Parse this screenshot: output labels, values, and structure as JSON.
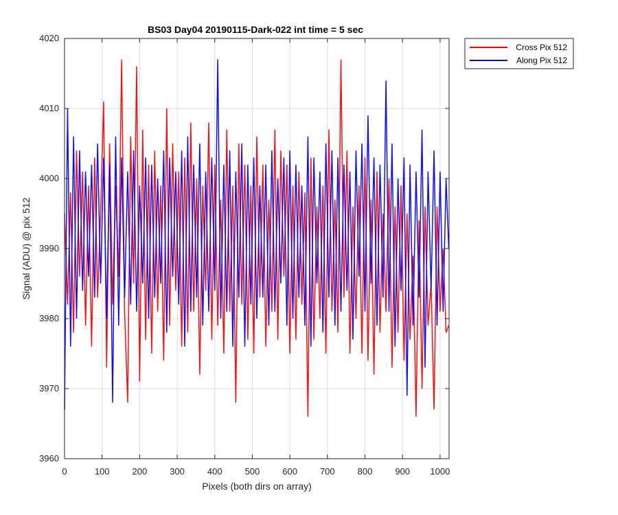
{
  "chart_data": {
    "type": "line",
    "title": "BS03 Day04 20190115-Dark-022 int time = 5 sec",
    "xlabel": "Pixels (both dirs on array)",
    "ylabel": "Signal (ADU) @ pix 512",
    "xlim": [
      0,
      1024
    ],
    "ylim": [
      3960,
      4020
    ],
    "xticks": [
      0,
      100,
      200,
      300,
      400,
      500,
      600,
      700,
      800,
      900,
      1000
    ],
    "yticks": [
      3960,
      3970,
      3980,
      3990,
      4000,
      4010,
      4020
    ],
    "grid": true,
    "legend_position": "outside-top-right",
    "sample_step": 8,
    "series": [
      {
        "name": "Cross Pix 512",
        "color": "#ff0000",
        "x": [
          0,
          8,
          16,
          24,
          32,
          40,
          48,
          56,
          64,
          72,
          80,
          88,
          96,
          104,
          112,
          120,
          128,
          136,
          144,
          152,
          160,
          168,
          176,
          184,
          192,
          200,
          208,
          216,
          224,
          232,
          240,
          248,
          256,
          264,
          272,
          280,
          288,
          296,
          304,
          312,
          320,
          328,
          336,
          344,
          352,
          360,
          368,
          376,
          384,
          392,
          400,
          408,
          416,
          424,
          432,
          440,
          448,
          456,
          464,
          472,
          480,
          488,
          496,
          504,
          512,
          520,
          528,
          536,
          544,
          552,
          560,
          568,
          576,
          584,
          592,
          600,
          608,
          616,
          624,
          632,
          640,
          648,
          656,
          664,
          672,
          680,
          688,
          696,
          704,
          712,
          720,
          728,
          736,
          744,
          752,
          760,
          768,
          776,
          784,
          792,
          800,
          808,
          816,
          824,
          832,
          840,
          848,
          856,
          864,
          872,
          880,
          888,
          896,
          904,
          912,
          920,
          928,
          936,
          944,
          952,
          960,
          968,
          976,
          984,
          992,
          1000,
          1008,
          1016,
          1023
        ],
        "values": [
          3995,
          3982,
          3998,
          3978,
          4004,
          3986,
          4001,
          3979,
          3999,
          3976,
          4003,
          3983,
          3995,
          4011,
          3973,
          4005,
          3982,
          3999,
          3986,
          4017,
          3981,
          3968,
          4006,
          3985,
          4016,
          3971,
          4007,
          3977,
          4002,
          3975,
          4004,
          3981,
          3999,
          3974,
          4010,
          3979,
          4005,
          3984,
          4001,
          3976,
          4003,
          3978,
          4008,
          3981,
          4000,
          3972,
          3999,
          3984,
          4008,
          3977,
          4002,
          3979,
          3997,
          3975,
          4007,
          3981,
          3999,
          3968,
          4005,
          3982,
          4002,
          3977,
          3999,
          3975,
          4006,
          3983,
          4002,
          3976,
          3997,
          3981,
          4007,
          3977,
          4004,
          3986,
          4002,
          3975,
          3999,
          3977,
          4001,
          3982,
          3998,
          3966,
          4003,
          3977,
          3996,
          3980,
          3999,
          3975,
          4007,
          3981,
          3997,
          3978,
          4017,
          3983,
          4004,
          3975,
          3996,
          3980,
          3999,
          3975,
          4003,
          3974,
          3997,
          3972,
          4001,
          3978,
          3995,
          3981,
          4000,
          3973,
          3996,
          3978,
          3999,
          3974,
          3995,
          3977,
          3989,
          3966,
          3994,
          3970,
          3996,
          3979,
          3985,
          3967,
          3996,
          3981,
          3990,
          3978,
          3979
        ]
      },
      {
        "name": "Along Pix 512",
        "color": "#0000ff",
        "x": [
          0,
          8,
          16,
          24,
          32,
          40,
          48,
          56,
          64,
          72,
          80,
          88,
          96,
          104,
          112,
          120,
          128,
          136,
          144,
          152,
          160,
          168,
          176,
          184,
          192,
          200,
          208,
          216,
          224,
          232,
          240,
          248,
          256,
          264,
          272,
          280,
          288,
          296,
          304,
          312,
          320,
          328,
          336,
          344,
          352,
          360,
          368,
          376,
          384,
          392,
          400,
          408,
          416,
          424,
          432,
          440,
          448,
          456,
          464,
          472,
          480,
          488,
          496,
          504,
          512,
          520,
          528,
          536,
          544,
          552,
          560,
          568,
          576,
          584,
          592,
          600,
          608,
          616,
          624,
          632,
          640,
          648,
          656,
          664,
          672,
          680,
          688,
          696,
          704,
          712,
          720,
          728,
          736,
          744,
          752,
          760,
          768,
          776,
          784,
          792,
          800,
          808,
          816,
          824,
          832,
          840,
          848,
          856,
          864,
          872,
          880,
          888,
          896,
          904,
          912,
          920,
          928,
          936,
          944,
          952,
          960,
          968,
          976,
          984,
          992,
          1000,
          1008,
          1016,
          1023
        ],
        "values": [
          3967,
          4010,
          3976,
          4006,
          3980,
          4004,
          3984,
          4001,
          3986,
          4002,
          3983,
          4005,
          3985,
          4003,
          3980,
          4002,
          3968,
          4006,
          3979,
          4003,
          3983,
          4001,
          3982,
          4004,
          3981,
          3999,
          3985,
          4003,
          3980,
          4002,
          3983,
          4000,
          3985,
          4004,
          3978,
          4003,
          3986,
          4001,
          3982,
          4004,
          3976,
          4006,
          3981,
          4002,
          3983,
          4005,
          3979,
          4001,
          3981,
          4003,
          3984,
          4017,
          3980,
          4002,
          3981,
          4004,
          3976,
          4001,
          3983,
          4005,
          3976,
          4002,
          3982,
          4003,
          3980,
          3999,
          3983,
          4002,
          3979,
          4004,
          3981,
          4000,
          3985,
          4003,
          3979,
          4004,
          3980,
          4002,
          3983,
          3999,
          3979,
          4006,
          3976,
          4003,
          3985,
          4001,
          3978,
          4005,
          3983,
          4004,
          3979,
          4003,
          3981,
          4002,
          3984,
          4001,
          3977,
          4004,
          3986,
          4005,
          3981,
          4009,
          3985,
          4003,
          3979,
          4002,
          3983,
          4014,
          3981,
          4005,
          3976,
          4000,
          3984,
          4003,
          3969,
          4002,
          3979,
          4001,
          3983,
          4007,
          3973,
          4001,
          3984,
          4004,
          3979,
          4001,
          3981,
          4000,
          3990
        ]
      }
    ]
  }
}
